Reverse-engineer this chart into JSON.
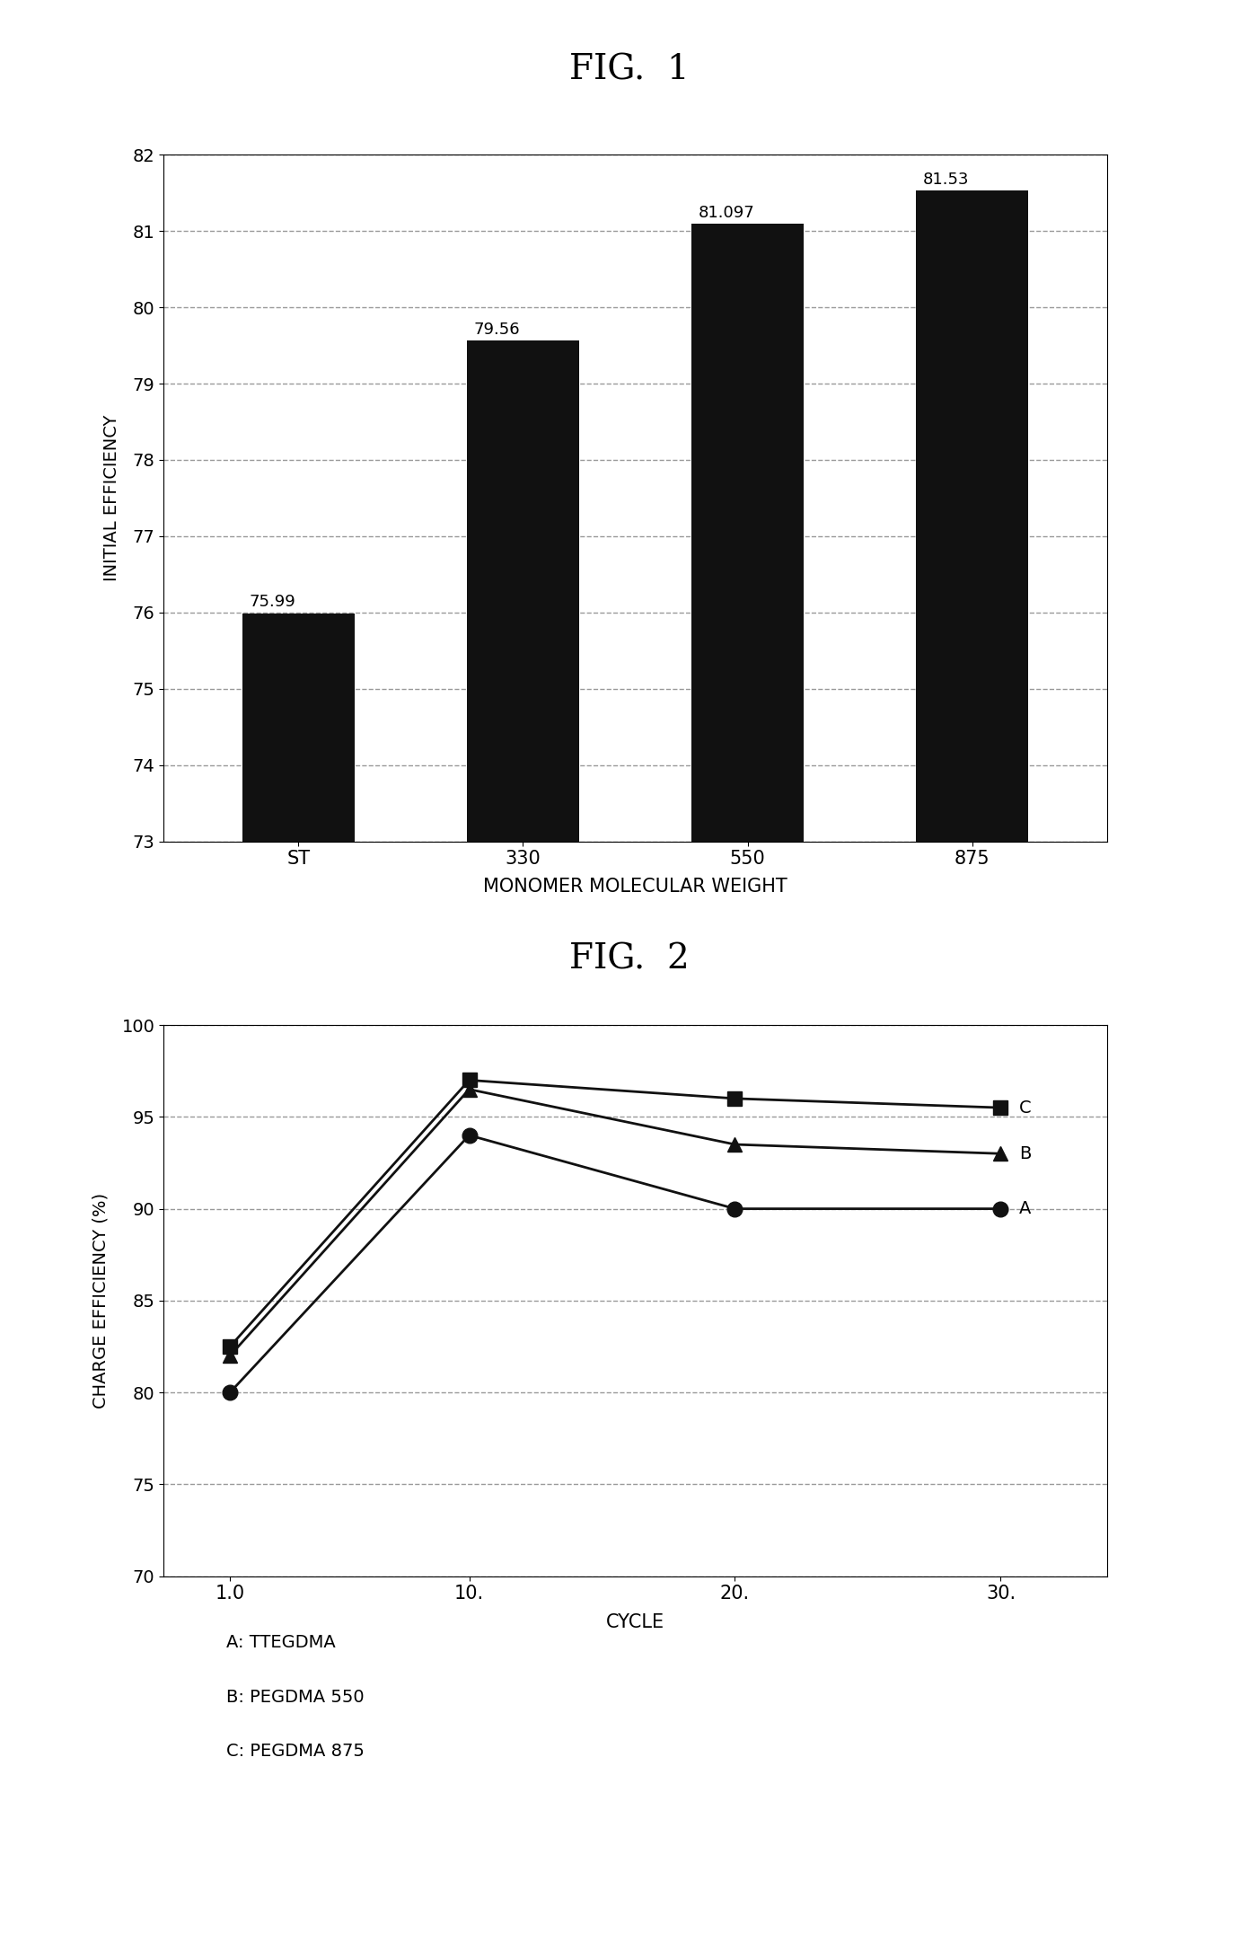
{
  "fig1": {
    "title": "FIG.  1",
    "categories": [
      "ST",
      "330",
      "550",
      "875"
    ],
    "values": [
      75.99,
      79.56,
      81.097,
      81.53
    ],
    "bar_color": "#111111",
    "ylabel": "INITIAL EFFICIENCY",
    "xlabel": "MONOMER MOLECULAR WEIGHT",
    "ylim": [
      73,
      82
    ],
    "yticks": [
      73,
      74,
      75,
      76,
      77,
      78,
      79,
      80,
      81,
      82
    ],
    "bar_labels": [
      "75.99",
      "79.56",
      "81.097",
      "81.53"
    ]
  },
  "fig2": {
    "title": "FIG.  2",
    "xlabel": "CYCLE",
    "ylabel": "CHARGE EFFICIENCY (%)",
    "ylim": [
      70,
      100
    ],
    "yticks": [
      70,
      75,
      80,
      85,
      90,
      95,
      100
    ],
    "xtick_labels": [
      "1.0",
      "10.",
      "20.",
      "30."
    ],
    "xtick_values": [
      1,
      10,
      20,
      30
    ],
    "series": {
      "A": {
        "x": [
          1,
          10,
          20,
          30
        ],
        "y": [
          80.0,
          94.0,
          90.0,
          90.0
        ],
        "marker": "o",
        "label": "A",
        "color": "#111111"
      },
      "B": {
        "x": [
          1,
          10,
          20,
          30
        ],
        "y": [
          82.0,
          96.5,
          93.5,
          93.0
        ],
        "marker": "^",
        "label": "B",
        "color": "#111111"
      },
      "C": {
        "x": [
          1,
          10,
          20,
          30
        ],
        "y": [
          82.5,
          97.0,
          96.0,
          95.5
        ],
        "marker": "s",
        "label": "C",
        "color": "#111111"
      }
    },
    "legend_text": [
      "A: TTEGDMA",
      "B: PEGDMA 550",
      "C: PEGDMA 875"
    ]
  },
  "bg_color": "#ffffff",
  "text_color": "#000000"
}
